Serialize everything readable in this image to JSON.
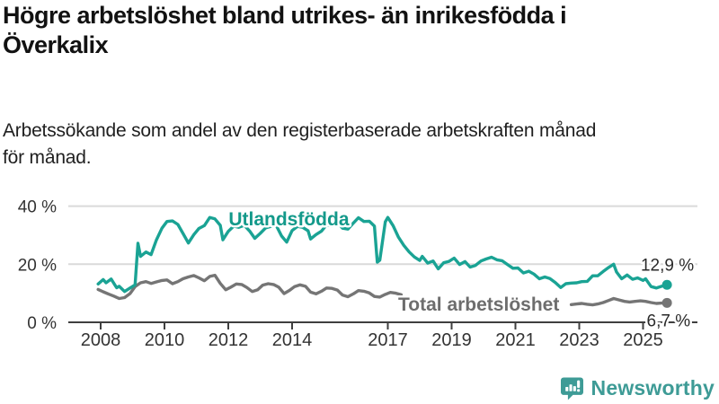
{
  "header": {
    "title_line1": "Högre arbetslöshet bland utrikes- än inrikesfödda i",
    "title_line2": "Överkalix",
    "subtitle_line1": "Arbetssökande som andel av den registerbaserade arbetskraften månad",
    "subtitle_line2": "för månad."
  },
  "footer": {
    "brand": "Newsworthy"
  },
  "colors": {
    "foreign_born": "#1AA394",
    "foreign_born_label": "#13998A",
    "total": "#757575",
    "total_label": "#6D6D6D",
    "grid": "#DADADA",
    "axis": "#3F3F3F",
    "axis_text": "#333333",
    "value_label": "#2A2A2A",
    "brand_teal": "#3E9B96"
  },
  "chart_data": {
    "type": "line",
    "title": "Högre arbetslöshet bland utrikes- än inrikesfödda i Överkalix",
    "subtitle": "Arbetssökande som andel av den registerbaserade arbetskraften månad för månad.",
    "x_axis": {
      "ticks": [
        2008,
        2010,
        2012,
        2014,
        2017,
        2019,
        2021,
        2023,
        2025
      ],
      "xlim": [
        2007.3,
        2026.7
      ]
    },
    "y_axis": {
      "ticks": [
        0,
        20,
        40
      ],
      "suffix": " %",
      "ylim": [
        0,
        46
      ],
      "grid": true
    },
    "series": [
      {
        "name": "Utlandsfödda",
        "color": "#1AA394",
        "label_color": "#13998A",
        "label_at": {
          "year": 2013.9,
          "value": 33.4
        },
        "end_label": "12,9 %",
        "end_value": 12.9,
        "points": [
          [
            2007.92,
            13.2
          ],
          [
            2008.08,
            14.7
          ],
          [
            2008.17,
            13.6
          ],
          [
            2008.33,
            14.9
          ],
          [
            2008.5,
            11.9
          ],
          [
            2008.58,
            12.4
          ],
          [
            2008.75,
            10.6
          ],
          [
            2008.92,
            11.8
          ],
          [
            2009.08,
            12.9
          ],
          [
            2009.17,
            27.2
          ],
          [
            2009.25,
            22.7
          ],
          [
            2009.42,
            24.2
          ],
          [
            2009.58,
            23.3
          ],
          [
            2009.75,
            28.4
          ],
          [
            2009.92,
            32.4
          ],
          [
            2010.08,
            34.7
          ],
          [
            2010.25,
            34.9
          ],
          [
            2010.42,
            33.7
          ],
          [
            2010.58,
            30.6
          ],
          [
            2010.75,
            27.3
          ],
          [
            2010.92,
            30.2
          ],
          [
            2011.08,
            32.3
          ],
          [
            2011.25,
            33.3
          ],
          [
            2011.42,
            36.1
          ],
          [
            2011.58,
            35.6
          ],
          [
            2011.75,
            33.4
          ],
          [
            2011.83,
            28.4
          ],
          [
            2012.0,
            31.3
          ],
          [
            2012.17,
            33.1
          ],
          [
            2012.33,
            32.7
          ],
          [
            2012.5,
            33.4
          ],
          [
            2012.67,
            31.4
          ],
          [
            2012.83,
            28.9
          ],
          [
            2013.0,
            30.6
          ],
          [
            2013.17,
            32.5
          ],
          [
            2013.33,
            33.0
          ],
          [
            2013.5,
            33.4
          ],
          [
            2013.67,
            29.7
          ],
          [
            2013.83,
            27.6
          ],
          [
            2014.0,
            31.6
          ],
          [
            2014.17,
            33.0
          ],
          [
            2014.33,
            32.7
          ],
          [
            2014.5,
            31.5
          ],
          [
            2014.58,
            28.7
          ],
          [
            2014.75,
            30.2
          ],
          [
            2014.92,
            31.4
          ],
          [
            2015.08,
            33.5
          ],
          [
            2015.25,
            33.2
          ],
          [
            2015.42,
            34.5
          ],
          [
            2015.58,
            32.4
          ],
          [
            2015.75,
            32.1
          ],
          [
            2015.92,
            34.2
          ],
          [
            2016.08,
            36.0
          ],
          [
            2016.25,
            34.7
          ],
          [
            2016.42,
            34.8
          ],
          [
            2016.58,
            33.1
          ],
          [
            2016.67,
            20.7
          ],
          [
            2016.75,
            21.4
          ],
          [
            2016.92,
            34.6
          ],
          [
            2017.0,
            36.1
          ],
          [
            2017.17,
            33.2
          ],
          [
            2017.33,
            29.4
          ],
          [
            2017.5,
            26.5
          ],
          [
            2017.67,
            24.2
          ],
          [
            2017.83,
            22.5
          ],
          [
            2018.0,
            21.3
          ],
          [
            2018.08,
            22.7
          ],
          [
            2018.25,
            20.4
          ],
          [
            2018.42,
            21.1
          ],
          [
            2018.58,
            18.4
          ],
          [
            2018.75,
            20.5
          ],
          [
            2018.92,
            21.0
          ],
          [
            2019.08,
            22.1
          ],
          [
            2019.25,
            19.9
          ],
          [
            2019.42,
            20.9
          ],
          [
            2019.58,
            19.0
          ],
          [
            2019.75,
            19.6
          ],
          [
            2019.92,
            21.1
          ],
          [
            2020.08,
            21.8
          ],
          [
            2020.25,
            22.4
          ],
          [
            2020.42,
            21.5
          ],
          [
            2020.58,
            21.2
          ],
          [
            2020.75,
            19.9
          ],
          [
            2020.92,
            18.6
          ],
          [
            2021.08,
            18.7
          ],
          [
            2021.25,
            17.0
          ],
          [
            2021.42,
            17.6
          ],
          [
            2021.58,
            16.6
          ],
          [
            2021.75,
            15.0
          ],
          [
            2021.92,
            15.6
          ],
          [
            2022.08,
            15.1
          ],
          [
            2022.25,
            13.7
          ],
          [
            2022.42,
            12.0
          ],
          [
            2022.58,
            13.3
          ],
          [
            2022.75,
            13.5
          ],
          [
            2022.92,
            13.6
          ],
          [
            2023.08,
            14.0
          ],
          [
            2023.25,
            14.1
          ],
          [
            2023.42,
            16.0
          ],
          [
            2023.58,
            16.0
          ],
          [
            2023.75,
            17.5
          ],
          [
            2023.92,
            18.9
          ],
          [
            2024.08,
            20.0
          ],
          [
            2024.17,
            17.3
          ],
          [
            2024.33,
            15.0
          ],
          [
            2024.5,
            16.3
          ],
          [
            2024.67,
            14.8
          ],
          [
            2024.83,
            15.3
          ],
          [
            2025.0,
            14.4
          ],
          [
            2025.08,
            15.0
          ],
          [
            2025.25,
            12.3
          ],
          [
            2025.42,
            11.8
          ],
          [
            2025.58,
            12.4
          ],
          [
            2025.75,
            12.9
          ]
        ]
      },
      {
        "name": "Total arbetslöshet",
        "color": "#757575",
        "label_color": "#6D6D6D",
        "label_at": {
          "year": 2019.85,
          "value": 4.0
        },
        "label_gap_years": [
          2017.5,
          2022.6
        ],
        "end_label": "6,7 %",
        "end_value": 6.7,
        "points": [
          [
            2007.92,
            11.3
          ],
          [
            2008.08,
            10.5
          ],
          [
            2008.25,
            9.7
          ],
          [
            2008.42,
            9.0
          ],
          [
            2008.58,
            8.2
          ],
          [
            2008.75,
            8.5
          ],
          [
            2008.92,
            9.9
          ],
          [
            2009.08,
            12.3
          ],
          [
            2009.25,
            13.6
          ],
          [
            2009.42,
            14.0
          ],
          [
            2009.58,
            13.4
          ],
          [
            2009.75,
            13.9
          ],
          [
            2009.92,
            14.4
          ],
          [
            2010.08,
            14.6
          ],
          [
            2010.25,
            13.3
          ],
          [
            2010.42,
            14.0
          ],
          [
            2010.58,
            15.0
          ],
          [
            2010.75,
            15.6
          ],
          [
            2010.92,
            16.1
          ],
          [
            2011.08,
            15.3
          ],
          [
            2011.25,
            14.3
          ],
          [
            2011.42,
            15.8
          ],
          [
            2011.58,
            16.2
          ],
          [
            2011.75,
            13.4
          ],
          [
            2011.92,
            11.2
          ],
          [
            2012.08,
            12.1
          ],
          [
            2012.25,
            13.2
          ],
          [
            2012.42,
            13.0
          ],
          [
            2012.58,
            12.0
          ],
          [
            2012.75,
            10.6
          ],
          [
            2012.92,
            11.2
          ],
          [
            2013.08,
            12.8
          ],
          [
            2013.25,
            13.3
          ],
          [
            2013.42,
            13.0
          ],
          [
            2013.58,
            12.1
          ],
          [
            2013.75,
            9.9
          ],
          [
            2013.92,
            11.0
          ],
          [
            2014.08,
            12.3
          ],
          [
            2014.25,
            12.9
          ],
          [
            2014.42,
            12.4
          ],
          [
            2014.58,
            10.4
          ],
          [
            2014.75,
            9.8
          ],
          [
            2014.92,
            10.7
          ],
          [
            2015.08,
            11.8
          ],
          [
            2015.25,
            11.7
          ],
          [
            2015.42,
            11.1
          ],
          [
            2015.58,
            9.4
          ],
          [
            2015.75,
            8.8
          ],
          [
            2015.92,
            9.8
          ],
          [
            2016.08,
            10.9
          ],
          [
            2016.25,
            10.7
          ],
          [
            2016.42,
            10.1
          ],
          [
            2016.58,
            8.9
          ],
          [
            2016.75,
            8.7
          ],
          [
            2016.92,
            9.6
          ],
          [
            2017.08,
            10.3
          ],
          [
            2017.25,
            10.0
          ],
          [
            2017.42,
            9.5
          ],
          [
            2017.58,
            9.1
          ],
          [
            2017.75,
            8.9
          ],
          [
            2017.92,
            9.2
          ],
          [
            2018.08,
            9.6
          ],
          [
            2018.25,
            9.3
          ],
          [
            2018.42,
            8.9
          ],
          [
            2018.58,
            8.6
          ],
          [
            2018.75,
            8.8
          ],
          [
            2018.92,
            9.0
          ],
          [
            2019.08,
            9.3
          ],
          [
            2019.25,
            9.0
          ],
          [
            2019.42,
            8.7
          ],
          [
            2019.58,
            8.6
          ],
          [
            2019.75,
            8.8
          ],
          [
            2019.92,
            9.0
          ],
          [
            2020.08,
            9.4
          ],
          [
            2020.25,
            9.6
          ],
          [
            2020.42,
            9.3
          ],
          [
            2020.58,
            9.0
          ],
          [
            2020.75,
            8.9
          ],
          [
            2020.92,
            8.7
          ],
          [
            2021.08,
            8.9
          ],
          [
            2021.25,
            8.6
          ],
          [
            2021.42,
            8.2
          ],
          [
            2021.58,
            7.9
          ],
          [
            2021.75,
            7.5
          ],
          [
            2021.92,
            7.3
          ],
          [
            2022.08,
            7.0
          ],
          [
            2022.25,
            6.7
          ],
          [
            2022.42,
            6.2
          ],
          [
            2022.58,
            6.0
          ],
          [
            2022.75,
            6.1
          ],
          [
            2022.92,
            6.3
          ],
          [
            2023.08,
            6.5
          ],
          [
            2023.25,
            6.2
          ],
          [
            2023.42,
            6.0
          ],
          [
            2023.58,
            6.3
          ],
          [
            2023.75,
            6.8
          ],
          [
            2023.92,
            7.5
          ],
          [
            2024.08,
            8.2
          ],
          [
            2024.25,
            7.7
          ],
          [
            2024.42,
            7.2
          ],
          [
            2024.58,
            7.0
          ],
          [
            2024.75,
            7.2
          ],
          [
            2024.92,
            7.4
          ],
          [
            2025.08,
            7.2
          ],
          [
            2025.25,
            6.8
          ],
          [
            2025.42,
            6.5
          ],
          [
            2025.58,
            6.6
          ],
          [
            2025.75,
            6.7
          ]
        ]
      }
    ],
    "legend_position": "inline-labels"
  }
}
